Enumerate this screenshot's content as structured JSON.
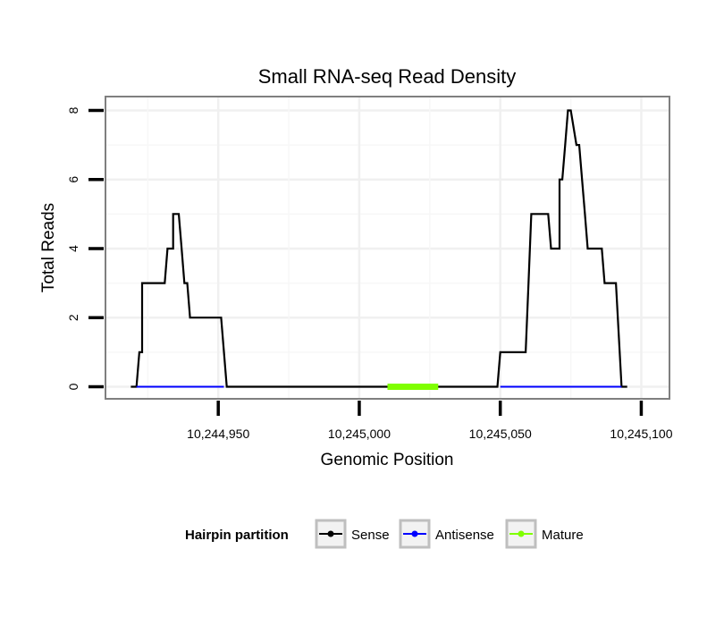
{
  "chart_data": {
    "type": "line",
    "title": "Small RNA-seq Read Density",
    "xlabel": "Genomic Position",
    "ylabel": "Total Reads",
    "xlim": [
      10244910,
      10245110
    ],
    "ylim": [
      -0.35,
      8.4
    ],
    "x_ticks": [
      10244950,
      10245000,
      10245050,
      10245100
    ],
    "x_tick_labels": [
      "10,244,950",
      "10,245,000",
      "10,245,050",
      "10,245,100"
    ],
    "y_ticks": [
      0,
      2,
      4,
      6,
      8
    ],
    "y_tick_labels": [
      "0",
      "2",
      "4",
      "6",
      "8"
    ],
    "grid": true,
    "legend": {
      "title": "Hairpin partition",
      "position": "bottom",
      "entries": [
        {
          "name": "Sense",
          "color": "#000000"
        },
        {
          "name": "Antisense",
          "color": "#0000ff"
        },
        {
          "name": "Mature",
          "color": "#7fff00"
        }
      ]
    },
    "series": [
      {
        "name": "Sense",
        "color": "#000000",
        "x": [
          10244919,
          10244921,
          10244922,
          10244922,
          10244923,
          10244923,
          10244924,
          10244931,
          10244932,
          10244932,
          10244934,
          10244934,
          10244936,
          10244937,
          10244938,
          10244939,
          10244940,
          10244951,
          10244953,
          10244980,
          10245000,
          10245049,
          10245050,
          10245059,
          10245060,
          10245060,
          10245061,
          10245067,
          10245068,
          10245071,
          10245071,
          10245072,
          10245073,
          10245073,
          10245074,
          10245075,
          10245077,
          10245078,
          10245078,
          10245080,
          10245081,
          10245082,
          10245086,
          10245087,
          10245091,
          10245093,
          10245095
        ],
        "values": [
          0,
          0,
          1,
          1,
          1,
          3,
          3,
          3,
          4,
          4,
          4,
          5,
          5,
          4,
          3,
          3,
          2,
          2,
          0,
          0,
          0,
          0,
          1,
          1,
          3,
          3,
          5,
          5,
          4,
          4,
          6,
          6,
          7,
          7,
          8,
          8,
          7,
          7,
          7,
          5,
          4,
          4,
          4,
          3,
          3,
          0,
          0
        ]
      },
      {
        "name": "Antisense",
        "color": "#0000ff",
        "segments": [
          [
            10244921,
            10244952
          ],
          [
            10245050,
            10245093
          ]
        ],
        "value": 0
      },
      {
        "name": "Mature",
        "color": "#7fff00",
        "segments": [
          [
            10245010,
            10245028
          ]
        ],
        "value": 0
      }
    ]
  }
}
